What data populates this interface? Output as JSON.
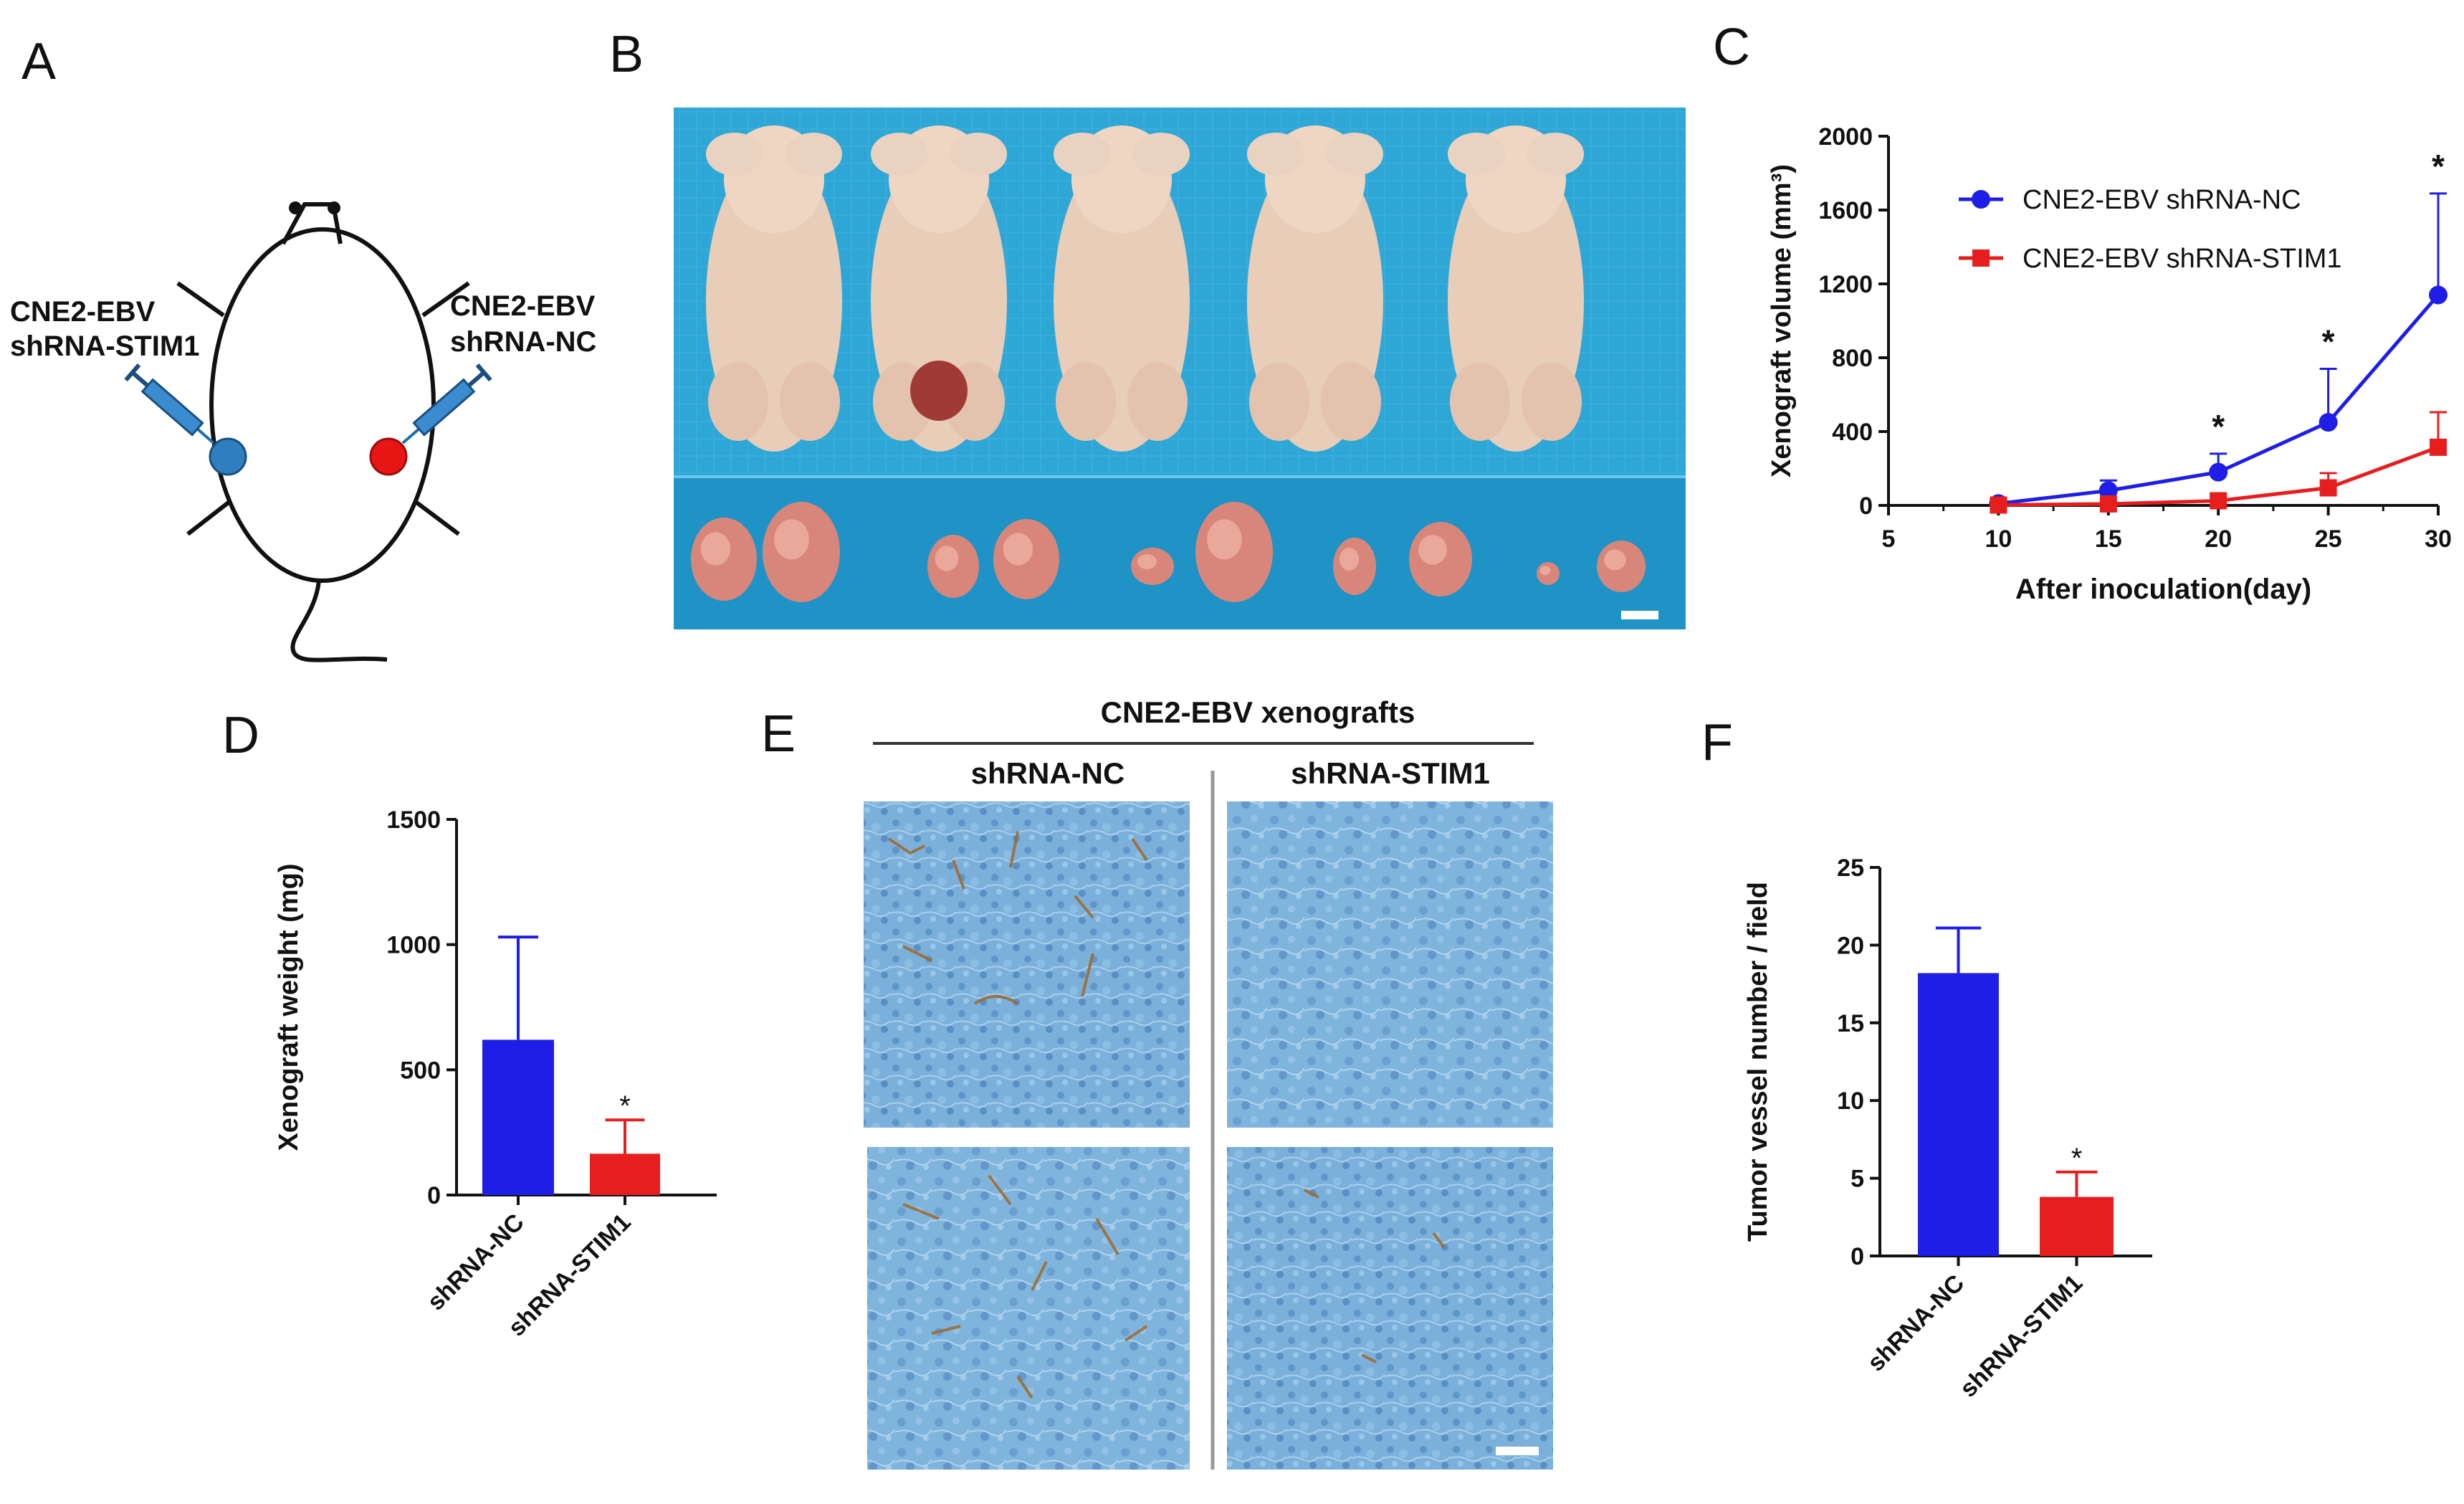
{
  "panels": {
    "a": {
      "label": "A",
      "left_text": [
        "CNE2-EBV",
        "shRNA-STIM1"
      ],
      "right_text": [
        "CNE2-EBV",
        "shRNA-NC"
      ]
    },
    "b": {
      "label": "B"
    },
    "c": {
      "label": "C"
    },
    "d": {
      "label": "D"
    },
    "e": {
      "label": "E",
      "title": "CNE2-EBV xenografts",
      "col1": "shRNA-NC",
      "col2": "shRNA-STIM1"
    },
    "f": {
      "label": "F"
    }
  },
  "colors": {
    "nc": "#1e1ee6",
    "stim1": "#e61e1e",
    "photo_bg": "#2aa4d4",
    "ihc_bg": "#7db2dc"
  },
  "chart_data": [
    {
      "type": "line",
      "panel": "C",
      "xlabel": "After inoculation(day)",
      "ylabel": "Xenograft volume (mm³)",
      "xlim": [
        5,
        30
      ],
      "ylim": [
        0,
        2000
      ],
      "xticks": [
        "5",
        "10",
        "15",
        "20",
        "25",
        "30"
      ],
      "yticks": [
        "0",
        "400",
        "800",
        "1200",
        "1600",
        "2000"
      ],
      "x": [
        10,
        15,
        20,
        25,
        30
      ],
      "series": [
        {
          "name": "CNE2-EBV shRNA-NC",
          "values": [
            10,
            80,
            180,
            450,
            1140
          ],
          "errors": [
            15,
            55,
            100,
            290,
            550
          ],
          "color": "#1e1ee6",
          "marker": "circle"
        },
        {
          "name": "CNE2-EBV shRNA-STIM1",
          "values": [
            2,
            8,
            25,
            95,
            315
          ],
          "errors": [
            5,
            10,
            25,
            80,
            190
          ],
          "color": "#e61e1e",
          "marker": "square"
        }
      ],
      "significance": [
        {
          "x": 20,
          "label": "*"
        },
        {
          "x": 25,
          "label": "*"
        },
        {
          "x": 30,
          "label": "*"
        }
      ],
      "legend": "top-right",
      "grid": false
    },
    {
      "type": "bar",
      "panel": "D",
      "ylabel": "Xenograft weight (mg)",
      "ylim": [
        0,
        1500
      ],
      "yticks": [
        "0",
        "500",
        "1000",
        "1500"
      ],
      "categories": [
        "shRNA-NC",
        "shRNA-STIM1"
      ],
      "values": [
        620,
        165
      ],
      "errors": [
        410,
        135
      ],
      "colors": [
        "#1e1ee6",
        "#e61e1e"
      ],
      "significance": [
        "",
        "*"
      ]
    },
    {
      "type": "bar",
      "panel": "F",
      "ylabel": "Tumor vessel number / field",
      "ylim": [
        0,
        25
      ],
      "yticks": [
        "0",
        "5",
        "10",
        "15",
        "20",
        "25"
      ],
      "categories": [
        "shRNA-NC",
        "shRNA-STIM1"
      ],
      "values": [
        18.2,
        3.8
      ],
      "errors": [
        2.9,
        1.6
      ],
      "colors": [
        "#1e1ee6",
        "#e61e1e"
      ],
      "significance": [
        "",
        "*"
      ]
    }
  ]
}
